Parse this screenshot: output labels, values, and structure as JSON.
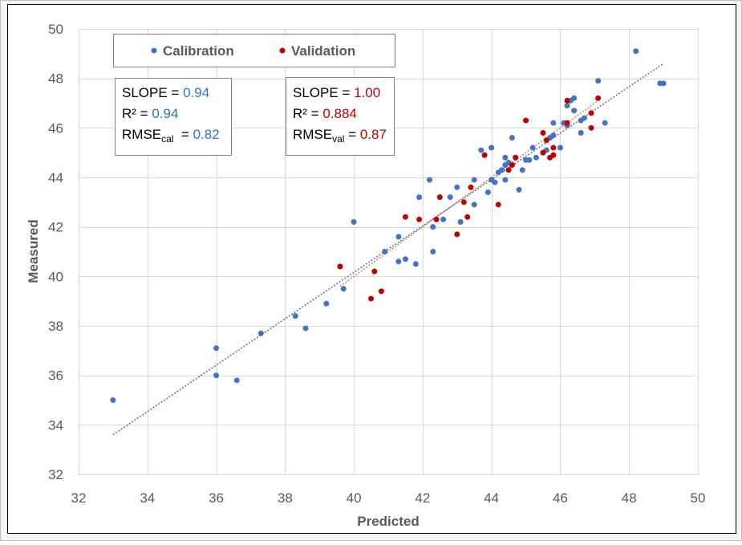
{
  "chart_data": {
    "type": "scatter",
    "xlabel": "Predicted",
    "ylabel": "Measured",
    "xlim": [
      32,
      50
    ],
    "ylim": [
      32,
      50
    ],
    "xticks": [
      32,
      34,
      36,
      38,
      40,
      42,
      44,
      46,
      48,
      50
    ],
    "yticks": [
      32,
      34,
      36,
      38,
      40,
      42,
      44,
      46,
      48,
      50
    ],
    "grid": true,
    "legend_position": "top-left",
    "series": [
      {
        "name": "Calibration",
        "color": "#4472C4",
        "points": [
          [
            33.0,
            35.0
          ],
          [
            36.0,
            37.1
          ],
          [
            36.0,
            36.0
          ],
          [
            36.6,
            35.8
          ],
          [
            37.3,
            37.7
          ],
          [
            38.3,
            38.4
          ],
          [
            38.6,
            37.9
          ],
          [
            39.2,
            38.9
          ],
          [
            39.7,
            39.5
          ],
          [
            40.0,
            42.2
          ],
          [
            40.9,
            41.0
          ],
          [
            41.3,
            41.6
          ],
          [
            41.3,
            40.6
          ],
          [
            41.5,
            40.7
          ],
          [
            41.8,
            40.5
          ],
          [
            41.9,
            43.2
          ],
          [
            42.2,
            43.9
          ],
          [
            42.3,
            42.0
          ],
          [
            42.3,
            41.0
          ],
          [
            42.6,
            42.3
          ],
          [
            42.8,
            43.2
          ],
          [
            43.0,
            43.6
          ],
          [
            43.1,
            42.2
          ],
          [
            43.5,
            42.9
          ],
          [
            43.5,
            43.9
          ],
          [
            43.7,
            45.1
          ],
          [
            43.9,
            43.4
          ],
          [
            44.0,
            43.9
          ],
          [
            44.0,
            45.2
          ],
          [
            44.1,
            43.8
          ],
          [
            44.2,
            44.2
          ],
          [
            44.3,
            44.3
          ],
          [
            44.4,
            43.9
          ],
          [
            44.4,
            44.5
          ],
          [
            44.4,
            44.8
          ],
          [
            44.5,
            44.6
          ],
          [
            44.6,
            45.6
          ],
          [
            44.7,
            44.8
          ],
          [
            44.8,
            43.5
          ],
          [
            44.9,
            44.3
          ],
          [
            45.0,
            44.7
          ],
          [
            45.1,
            44.7
          ],
          [
            45.2,
            45.2
          ],
          [
            45.3,
            44.8
          ],
          [
            45.5,
            45.0
          ],
          [
            45.6,
            45.1
          ],
          [
            45.7,
            45.6
          ],
          [
            45.8,
            45.7
          ],
          [
            45.8,
            46.2
          ],
          [
            46.0,
            45.2
          ],
          [
            46.1,
            46.2
          ],
          [
            46.2,
            46.1
          ],
          [
            46.2,
            46.9
          ],
          [
            46.3,
            47.1
          ],
          [
            46.4,
            47.2
          ],
          [
            46.4,
            46.7
          ],
          [
            46.6,
            45.8
          ],
          [
            46.6,
            46.3
          ],
          [
            46.7,
            46.4
          ],
          [
            47.1,
            47.9
          ],
          [
            47.3,
            46.2
          ],
          [
            48.2,
            49.1
          ],
          [
            48.9,
            47.8
          ],
          [
            49.0,
            47.8
          ]
        ]
      },
      {
        "name": "Validation",
        "color": "#C00000",
        "points": [
          [
            39.6,
            40.4
          ],
          [
            40.5,
            39.1
          ],
          [
            40.6,
            40.2
          ],
          [
            40.8,
            39.4
          ],
          [
            41.5,
            42.4
          ],
          [
            41.9,
            42.3
          ],
          [
            42.4,
            42.3
          ],
          [
            42.5,
            43.2
          ],
          [
            43.0,
            41.7
          ],
          [
            43.2,
            43.0
          ],
          [
            43.3,
            42.4
          ],
          [
            43.4,
            43.6
          ],
          [
            43.8,
            44.9
          ],
          [
            44.2,
            42.9
          ],
          [
            44.5,
            44.3
          ],
          [
            44.6,
            44.5
          ],
          [
            44.7,
            44.8
          ],
          [
            45.0,
            46.3
          ],
          [
            45.5,
            45.0
          ],
          [
            45.5,
            45.8
          ],
          [
            45.6,
            45.5
          ],
          [
            45.7,
            44.8
          ],
          [
            45.8,
            45.2
          ],
          [
            45.8,
            44.9
          ],
          [
            46.2,
            47.1
          ],
          [
            46.2,
            46.2
          ],
          [
            46.9,
            46.0
          ],
          [
            46.9,
            46.6
          ],
          [
            47.1,
            47.2
          ]
        ]
      }
    ],
    "trendlines": [
      {
        "series": "Calibration",
        "color": "#4472C4",
        "x": [
          33.0,
          49.0
        ],
        "y": [
          33.6,
          48.6
        ]
      },
      {
        "series": "Validation",
        "color": "#ED7D31",
        "x": [
          39.6,
          47.1
        ],
        "y": [
          39.6,
          47.1
        ]
      }
    ],
    "stats": {
      "calibration": {
        "slope_label": "SLOPE = ",
        "slope_value": "0.94",
        "r2_label": "R² = ",
        "r2_value": "0.94",
        "rmse_prefix": "RMSE",
        "rmse_sub": "cal",
        "rmse_eq": "  = ",
        "rmse_value": "0.82",
        "value_color": "#2E75B6"
      },
      "validation": {
        "slope_label": "SLOPE = ",
        "slope_value": "1.00",
        "r2_label": "R² = ",
        "r2_value": "0.884",
        "rmse_prefix": "RMSE",
        "rmse_sub": "val",
        "rmse_eq": " = ",
        "rmse_value": "0.87",
        "value_color": "#C00000"
      }
    }
  }
}
